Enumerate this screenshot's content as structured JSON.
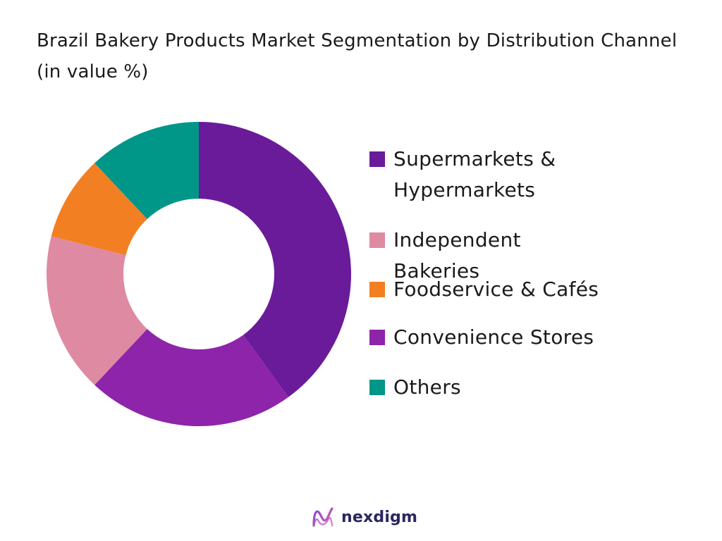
{
  "chart_data": {
    "type": "pie",
    "donut": true,
    "title": "Brazil Bakery Products Market Segmentation by Distribution Channel (in value %)",
    "categories": [
      "Supermarkets & Hypermarkets",
      "Independent Bakeries",
      "Foodservice & Cafés",
      "Convenience Stores",
      "Others"
    ],
    "values": [
      40,
      17,
      9,
      22,
      12
    ],
    "draw_order": [
      0,
      3,
      1,
      2,
      4
    ],
    "colors": [
      "#6A1B9A",
      "#DE8AA3",
      "#F27F22",
      "#8E24AA",
      "#009688"
    ],
    "legend_position": "right"
  },
  "brand": {
    "name": "nexdigm",
    "logo_icon": "nexdigm-logo-icon"
  }
}
